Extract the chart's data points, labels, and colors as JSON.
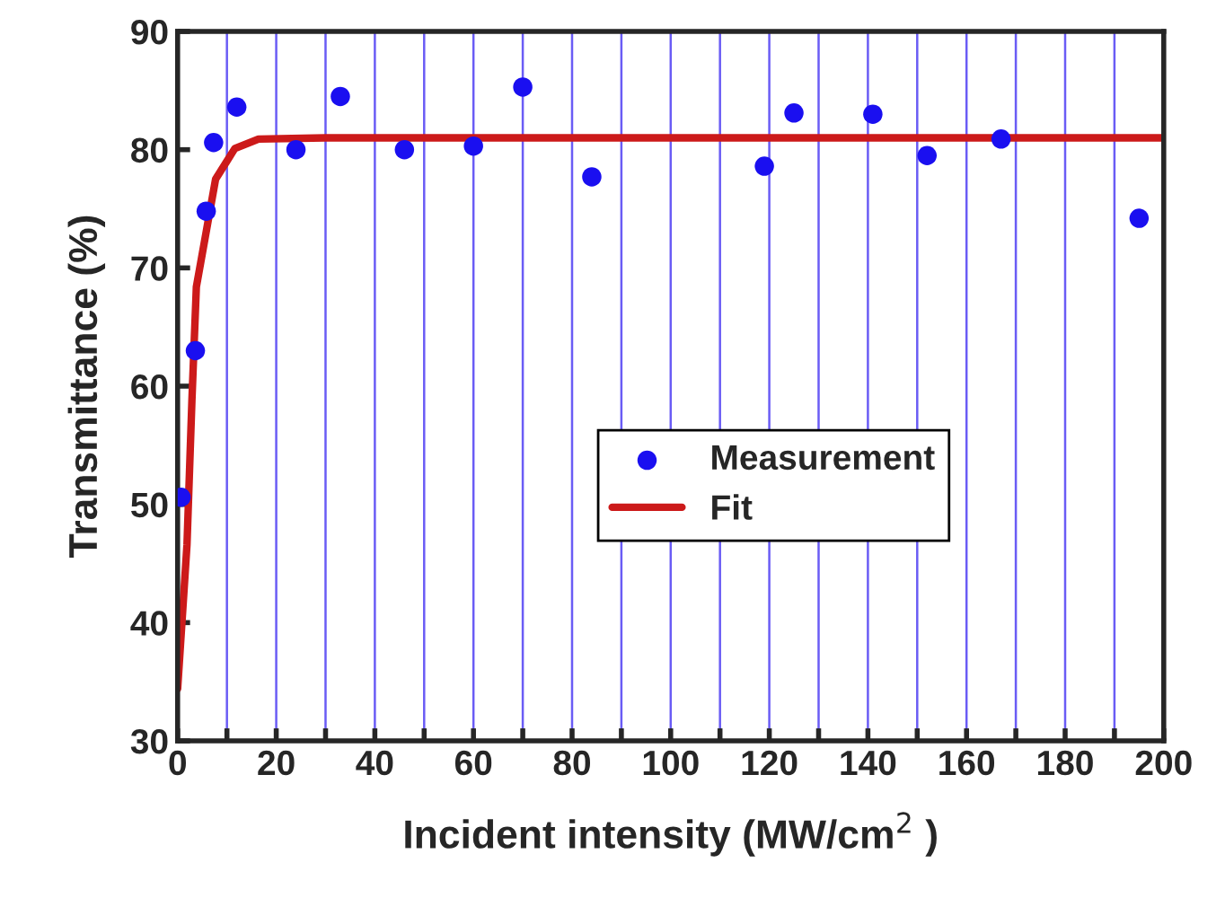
{
  "chart_data": {
    "type": "scatter",
    "xlabel": "Incident intensity (MW/cm$^{2}$ )",
    "ylabel": "Transmittance (%)",
    "xlim": [
      0,
      200
    ],
    "ylim": [
      30,
      90
    ],
    "xticks": [
      0,
      {
        "value": 10,
        "label": null
      },
      20,
      {
        "value": 30,
        "label": null
      },
      40,
      {
        "value": 50,
        "label": null
      },
      60,
      {
        "value": 70,
        "label": null
      },
      80,
      {
        "value": 90,
        "label": null
      },
      100,
      {
        "value": 110,
        "label": null
      },
      120,
      {
        "value": 130,
        "label": null
      },
      140,
      {
        "value": 150,
        "label": null
      },
      160,
      {
        "value": 170,
        "label": null
      },
      180,
      {
        "value": 190,
        "label": null
      },
      200
    ],
    "yticks": [
      30,
      40,
      50,
      60,
      70,
      80,
      90
    ],
    "grid": "x",
    "legend": "center right",
    "series": [
      {
        "name": "Measurement",
        "color": "#1a0ff0",
        "marker": "circle",
        "x": [
          0.7,
          3.6,
          5.8,
          7.3,
          12,
          24,
          33,
          46,
          60,
          70,
          84,
          119,
          125,
          141,
          152,
          167,
          195
        ],
        "values": [
          50.6,
          63,
          74.8,
          80.6,
          83.6,
          80,
          84.5,
          80,
          80.3,
          85.3,
          77.7,
          78.6,
          83.1,
          83,
          79.5,
          80.9,
          74.2
        ]
      },
      {
        "name": "Fit",
        "type": "line",
        "color": "#cc1a1a",
        "marker": "none",
        "line_style": "solid",
        "x": [
          0,
          1.9,
          2.9,
          3.8,
          7.7,
          11.6,
          16.4,
          30,
          100,
          200
        ],
        "values": [
          34.4,
          46.6,
          58.8,
          68.4,
          77.5,
          80.1,
          80.9,
          81,
          81,
          81
        ]
      }
    ]
  }
}
